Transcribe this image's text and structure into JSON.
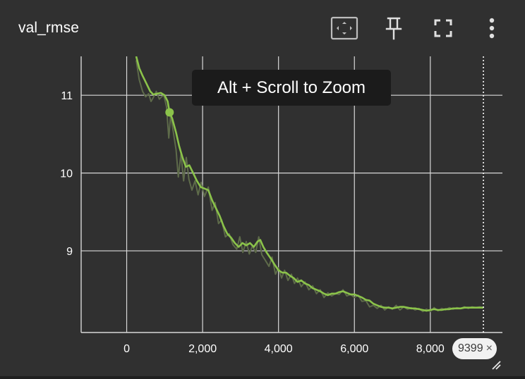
{
  "card": {
    "title": "val_rmse"
  },
  "toolbar": {
    "fit_icon": "fit-to-data-icon",
    "pin_icon": "pin-icon",
    "fullscreen_icon": "fullscreen-icon",
    "menu_icon": "more-vert-icon"
  },
  "tooltip": {
    "text": "Alt + Scroll to Zoom"
  },
  "step_chip": {
    "value": "9399",
    "close_glyph": "×"
  },
  "colors": {
    "background": "#303030",
    "grid": "#d8d8d8",
    "series": "#8bc34a",
    "raw_series": "#5e6b4a"
  },
  "chart_data": {
    "type": "line",
    "title": "val_rmse",
    "xlabel": "",
    "ylabel": "",
    "xlim": [
      -1200,
      9900
    ],
    "ylim": [
      7.95,
      11.5
    ],
    "x_ticks": [
      0,
      2000,
      4000,
      6000,
      8000
    ],
    "x_tick_labels": [
      "0",
      "2,000",
      "4,000",
      "6,000",
      "8,000"
    ],
    "y_ticks": [
      9,
      10,
      11
    ],
    "y_tick_labels": [
      "9",
      "10",
      "11"
    ],
    "grid": true,
    "hover_point": {
      "x": 1130,
      "y": 10.78
    },
    "step_marker_x": 9399,
    "series": [
      {
        "style": "smoothed",
        "points": [
          [
            250,
            11.5
          ],
          [
            330,
            11.35
          ],
          [
            420,
            11.25
          ],
          [
            520,
            11.15
          ],
          [
            620,
            11.05
          ],
          [
            700,
            11.01
          ],
          [
            800,
            11.02
          ],
          [
            900,
            11.03
          ],
          [
            1000,
            11.0
          ],
          [
            1080,
            10.92
          ],
          [
            1130,
            10.78
          ],
          [
            1200,
            10.7
          ],
          [
            1300,
            10.52
          ],
          [
            1380,
            10.35
          ],
          [
            1470,
            10.2
          ],
          [
            1560,
            10.08
          ],
          [
            1650,
            10.1
          ],
          [
            1750,
            10.0
          ],
          [
            1850,
            9.9
          ],
          [
            1950,
            9.82
          ],
          [
            2050,
            9.8
          ],
          [
            2150,
            9.78
          ],
          [
            2250,
            9.65
          ],
          [
            2350,
            9.55
          ],
          [
            2450,
            9.45
          ],
          [
            2550,
            9.32
          ],
          [
            2650,
            9.22
          ],
          [
            2750,
            9.17
          ],
          [
            2850,
            9.1
          ],
          [
            2950,
            9.05
          ],
          [
            3050,
            9.1
          ],
          [
            3150,
            9.07
          ],
          [
            3250,
            9.1
          ],
          [
            3350,
            9.05
          ],
          [
            3450,
            9.12
          ],
          [
            3520,
            9.14
          ],
          [
            3600,
            9.05
          ],
          [
            3700,
            8.97
          ],
          [
            3800,
            8.9
          ],
          [
            3900,
            8.82
          ],
          [
            4000,
            8.75
          ],
          [
            4100,
            8.72
          ],
          [
            4200,
            8.72
          ],
          [
            4300,
            8.68
          ],
          [
            4400,
            8.65
          ],
          [
            4500,
            8.6
          ],
          [
            4600,
            8.62
          ],
          [
            4700,
            8.58
          ],
          [
            4800,
            8.56
          ],
          [
            4900,
            8.52
          ],
          [
            5000,
            8.5
          ],
          [
            5100,
            8.48
          ],
          [
            5200,
            8.45
          ],
          [
            5300,
            8.43
          ],
          [
            5400,
            8.45
          ],
          [
            5500,
            8.45
          ],
          [
            5600,
            8.47
          ],
          [
            5700,
            8.48
          ],
          [
            5800,
            8.46
          ],
          [
            5900,
            8.44
          ],
          [
            6000,
            8.44
          ],
          [
            6100,
            8.42
          ],
          [
            6200,
            8.4
          ],
          [
            6300,
            8.37
          ],
          [
            6400,
            8.36
          ],
          [
            6500,
            8.32
          ],
          [
            6600,
            8.3
          ],
          [
            6700,
            8.28
          ],
          [
            6800,
            8.27
          ],
          [
            6900,
            8.27
          ],
          [
            7000,
            8.26
          ],
          [
            7100,
            8.27
          ],
          [
            7200,
            8.28
          ],
          [
            7300,
            8.28
          ],
          [
            7400,
            8.27
          ],
          [
            7500,
            8.26
          ],
          [
            7600,
            8.26
          ],
          [
            7700,
            8.25
          ],
          [
            7800,
            8.24
          ],
          [
            7900,
            8.23
          ],
          [
            8000,
            8.24
          ],
          [
            8100,
            8.25
          ],
          [
            8200,
            8.24
          ],
          [
            8300,
            8.24
          ],
          [
            8400,
            8.25
          ],
          [
            8500,
            8.25
          ],
          [
            8600,
            8.26
          ],
          [
            8700,
            8.26
          ],
          [
            8800,
            8.26
          ],
          [
            8900,
            8.27
          ],
          [
            9000,
            8.27
          ],
          [
            9100,
            8.27
          ],
          [
            9200,
            8.27
          ],
          [
            9300,
            8.27
          ],
          [
            9399,
            8.27
          ]
        ]
      },
      {
        "style": "raw",
        "points": [
          [
            250,
            11.45
          ],
          [
            330,
            11.2
          ],
          [
            420,
            11.05
          ],
          [
            500,
            10.98
          ],
          [
            580,
            11.02
          ],
          [
            640,
            10.92
          ],
          [
            700,
            10.97
          ],
          [
            780,
            11.05
          ],
          [
            860,
            10.95
          ],
          [
            920,
            10.98
          ],
          [
            980,
            11.0
          ],
          [
            1050,
            10.85
          ],
          [
            1110,
            10.45
          ],
          [
            1160,
            10.75
          ],
          [
            1220,
            10.55
          ],
          [
            1300,
            10.3
          ],
          [
            1360,
            9.95
          ],
          [
            1430,
            10.25
          ],
          [
            1500,
            9.9
          ],
          [
            1570,
            10.2
          ],
          [
            1640,
            9.92
          ],
          [
            1720,
            9.78
          ],
          [
            1800,
            9.9
          ],
          [
            1880,
            9.72
          ],
          [
            1960,
            9.88
          ],
          [
            2050,
            9.7
          ],
          [
            2150,
            9.82
          ],
          [
            2250,
            9.52
          ],
          [
            2330,
            9.62
          ],
          [
            2420,
            9.35
          ],
          [
            2500,
            9.4
          ],
          [
            2600,
            9.18
          ],
          [
            2700,
            9.22
          ],
          [
            2800,
            9.08
          ],
          [
            2900,
            9.02
          ],
          [
            2980,
            9.18
          ],
          [
            3060,
            8.98
          ],
          [
            3150,
            9.12
          ],
          [
            3230,
            8.96
          ],
          [
            3310,
            9.06
          ],
          [
            3400,
            8.98
          ],
          [
            3480,
            9.18
          ],
          [
            3560,
            8.95
          ],
          [
            3650,
            8.88
          ],
          [
            3750,
            8.8
          ],
          [
            3830,
            8.92
          ],
          [
            3920,
            8.7
          ],
          [
            4000,
            8.78
          ],
          [
            4080,
            8.65
          ],
          [
            4160,
            8.75
          ],
          [
            4250,
            8.62
          ],
          [
            4340,
            8.7
          ],
          [
            4420,
            8.58
          ],
          [
            4500,
            8.65
          ],
          [
            4600,
            8.54
          ],
          [
            4700,
            8.6
          ],
          [
            4800,
            8.5
          ],
          [
            4900,
            8.55
          ],
          [
            5000,
            8.45
          ],
          [
            5100,
            8.5
          ],
          [
            5200,
            8.4
          ],
          [
            5300,
            8.46
          ],
          [
            5400,
            8.42
          ],
          [
            5500,
            8.45
          ],
          [
            5600,
            8.44
          ],
          [
            5700,
            8.5
          ],
          [
            5800,
            8.42
          ],
          [
            5900,
            8.44
          ],
          [
            6000,
            8.4
          ],
          [
            6100,
            8.43
          ],
          [
            6200,
            8.35
          ],
          [
            6300,
            8.36
          ],
          [
            6400,
            8.28
          ],
          [
            6500,
            8.3
          ],
          [
            6600,
            8.26
          ],
          [
            6700,
            8.3
          ],
          [
            6800,
            8.24
          ],
          [
            6900,
            8.28
          ],
          [
            7000,
            8.25
          ],
          [
            7100,
            8.3
          ],
          [
            7200,
            8.24
          ],
          [
            7300,
            8.28
          ],
          [
            7400,
            8.25
          ],
          [
            7500,
            8.27
          ],
          [
            7600,
            8.24
          ],
          [
            7700,
            8.26
          ],
          [
            7800,
            8.22
          ],
          [
            7900,
            8.25
          ],
          [
            8000,
            8.22
          ],
          [
            8100,
            8.27
          ],
          [
            8200,
            8.23
          ],
          [
            8300,
            8.26
          ],
          [
            8400,
            8.24
          ],
          [
            8500,
            8.27
          ],
          [
            8600,
            8.25
          ],
          [
            8700,
            8.27
          ],
          [
            8800,
            8.26
          ],
          [
            8900,
            8.28
          ],
          [
            9000,
            8.26
          ],
          [
            9100,
            8.28
          ],
          [
            9200,
            8.27
          ],
          [
            9300,
            8.28
          ],
          [
            9399,
            8.27
          ]
        ]
      }
    ]
  }
}
